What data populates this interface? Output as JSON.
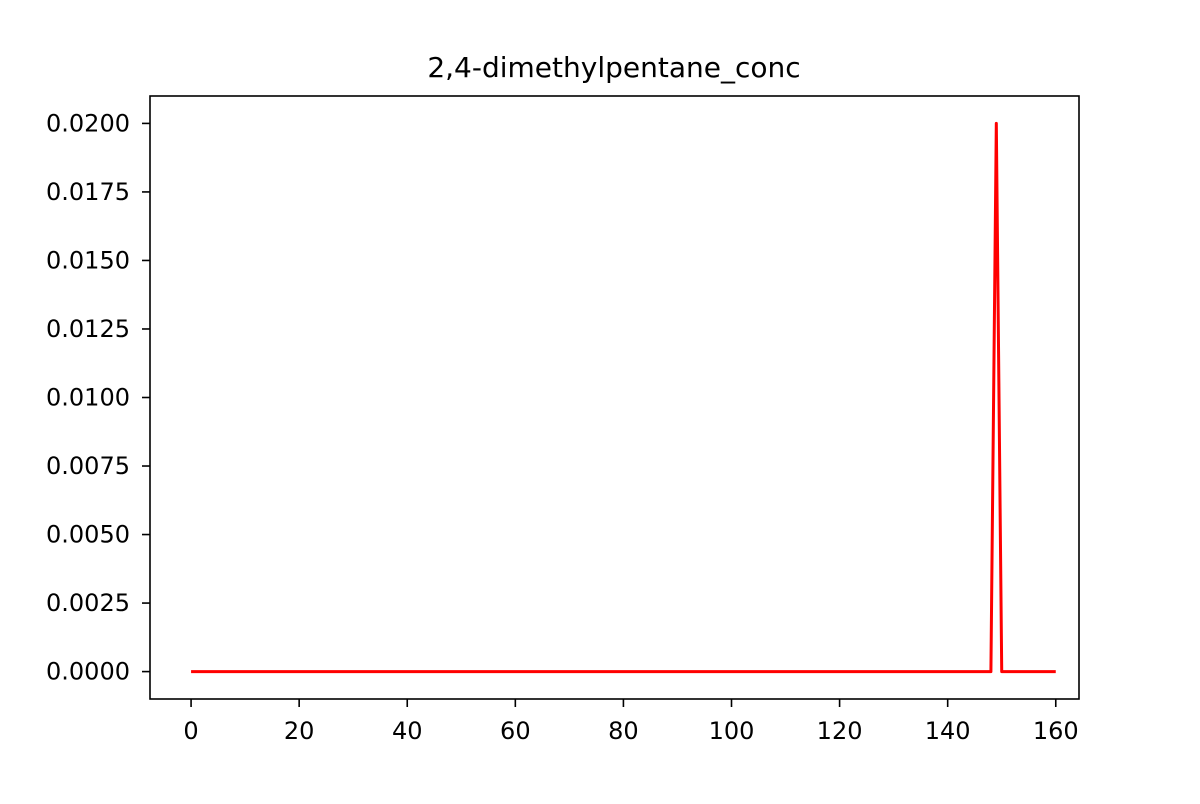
{
  "chart_data": {
    "type": "line",
    "title": "2,4-dimethylpentane_conc",
    "xlabel": "",
    "ylabel": "",
    "xlim": [
      -7.6,
      164.3
    ],
    "ylim": [
      -0.001,
      0.021
    ],
    "x_ticks": [
      0,
      20,
      40,
      60,
      80,
      100,
      120,
      140,
      160
    ],
    "y_ticks": [
      0.0,
      0.0025,
      0.005,
      0.0075,
      0.01,
      0.0125,
      0.015,
      0.0175,
      0.02
    ],
    "x_tick_labels": [
      "0",
      "20",
      "40",
      "60",
      "80",
      "100",
      "120",
      "140",
      "160"
    ],
    "y_tick_labels": [
      "0.0000",
      "0.0025",
      "0.0050",
      "0.0075",
      "0.0100",
      "0.0125",
      "0.0150",
      "0.0175",
      "0.0200"
    ],
    "grid": false,
    "series": [
      {
        "color": "#ff0000",
        "x": [
          0,
          148,
          149,
          150,
          160
        ],
        "y": [
          0.0,
          0.0,
          0.02,
          0.0,
          0.0
        ]
      }
    ]
  }
}
